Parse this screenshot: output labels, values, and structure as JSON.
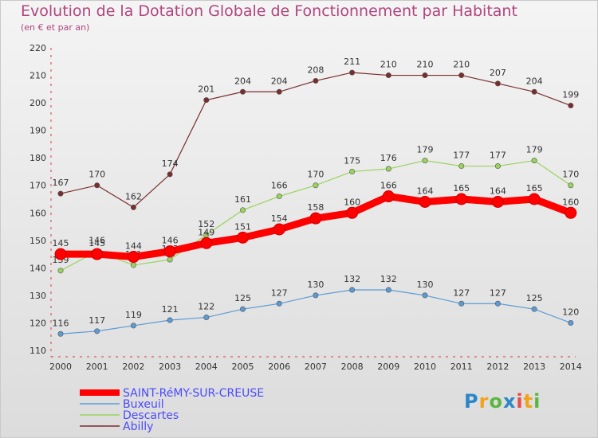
{
  "title": "Evolution de la Dotation Globale de Fonctionnement par Habitant",
  "subtitle": "(en € et par an)",
  "brand": "Proxiti",
  "chart_data": {
    "type": "line",
    "title": "Evolution de la Dotation Globale de Fonctionnement par Habitant",
    "subtitle": "(en € et par an)",
    "xlabel": "",
    "ylabel": "",
    "categories": [
      "2000",
      "2001",
      "2002",
      "2003",
      "2004",
      "2005",
      "2006",
      "2007",
      "2008",
      "2009",
      "2010",
      "2011",
      "2012",
      "2013",
      "2014"
    ],
    "ylim": [
      110,
      220
    ],
    "yticks": [
      110,
      120,
      130,
      140,
      150,
      160,
      170,
      180,
      190,
      200,
      210,
      220
    ],
    "grid": false,
    "legend_position": "bottom-left",
    "series": [
      {
        "name": "SAINT-RéMY-SUR-CREUSE",
        "color": "#ff0000",
        "values": [
          145,
          145,
          144,
          146,
          149,
          151,
          154,
          158,
          160,
          166,
          164,
          165,
          164,
          165,
          160
        ],
        "emphasis": true
      },
      {
        "name": "Buxeuil",
        "color": "#5b9bd5",
        "values": [
          116,
          117,
          119,
          121,
          122,
          125,
          127,
          130,
          132,
          132,
          130,
          127,
          127,
          125,
          120
        ]
      },
      {
        "name": "Descartes",
        "color": "#9ad35c",
        "values": [
          139,
          146,
          141,
          143,
          152,
          161,
          166,
          170,
          175,
          176,
          179,
          177,
          177,
          179,
          170
        ]
      },
      {
        "name": "Abilly",
        "color": "#7a2d2d",
        "values": [
          167,
          170,
          162,
          174,
          201,
          204,
          204,
          208,
          211,
          210,
          210,
          210,
          207,
          204,
          199
        ]
      }
    ]
  }
}
